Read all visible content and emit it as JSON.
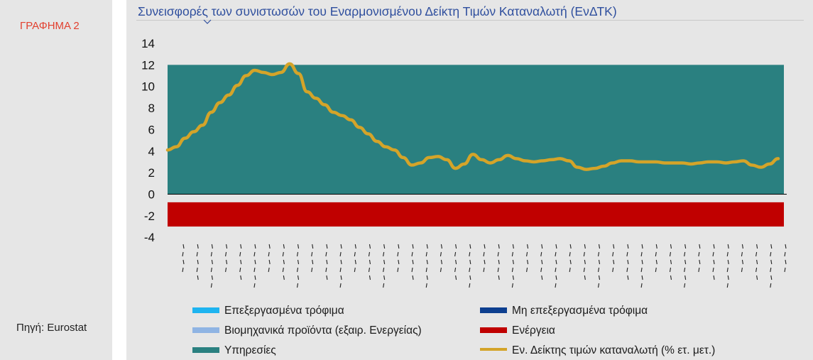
{
  "sidebar": {
    "chart_label": "ΓΡΑΦΗΜΑ 2",
    "source": "Πηγή: Eurostat"
  },
  "chart_data": {
    "type": "area",
    "title": "Συνεισφορές των συνιστωσών του Εναρμονισμένου Δείκτη Τιμών Καταναλωτή (ΕνΔΤΚ)",
    "xlabel": "",
    "ylabel": "",
    "ylim": [
      -4,
      14
    ],
    "yticks": [
      14,
      12,
      10,
      8,
      6,
      4,
      2,
      0,
      -2,
      -4
    ],
    "colors": {
      "processed_food": "#1eb4f0",
      "unprocessed_food": "#0d3f8f",
      "industrial_goods": "#8fb4e3",
      "energy": "#c00000",
      "services": "#2a8080",
      "hicp": "#d4a429",
      "zero_line": "#000000"
    },
    "stacked_series": [
      {
        "name": "Υπηρεσίες",
        "color_key": "services",
        "values_range": [
          0,
          12
        ]
      },
      {
        "name": "Ενέργεια",
        "color_key": "energy",
        "values_range": [
          -3,
          -0.75
        ]
      }
    ],
    "line_series": {
      "name": "Εν. Δείκτης τιμών καταναλωτή (% ετ. μετ.)",
      "values": [
        4.1,
        4.4,
        5.2,
        5.8,
        6.4,
        7.6,
        8.5,
        9.2,
        10.1,
        11.0,
        11.5,
        11.3,
        11.1,
        11.3,
        12.1,
        11.2,
        9.5,
        8.9,
        8.3,
        7.6,
        7.3,
        6.9,
        6.2,
        5.6,
        4.9,
        4.4,
        4.1,
        3.4,
        2.7,
        2.9,
        3.4,
        3.5,
        3.2,
        2.4,
        2.8,
        3.7,
        3.2,
        2.9,
        3.2,
        3.6,
        3.3,
        3.1,
        3.0,
        3.1,
        3.2,
        3.3,
        3.1,
        2.5,
        2.3,
        2.4,
        2.6,
        2.9,
        3.1,
        3.1,
        3.0,
        3.0,
        3.0,
        2.9,
        2.9,
        2.9,
        2.8,
        2.9,
        3.0,
        3.0,
        2.9,
        3.0,
        3.1,
        2.7,
        2.5,
        2.8,
        3.3
      ]
    },
    "legend": [
      {
        "label": "Επεξεργασμένα τρόφιμα",
        "color_key": "processed_food",
        "position": "bottom-left"
      },
      {
        "label": "Μη επεξεργασμένα τρόφιμα",
        "color_key": "unprocessed_food",
        "position": "bottom-right"
      },
      {
        "label": "Βιομηχανικά προϊόντα (εξαιρ. Ενεργείας)",
        "color_key": "industrial_goods",
        "position": "bottom-left"
      },
      {
        "label": "Ενέργεια",
        "color_key": "energy",
        "position": "bottom-right"
      },
      {
        "label": "Υπηρεσίες",
        "color_key": "services",
        "position": "bottom-left"
      },
      {
        "label": "Εν. Δείκτης τιμών καταναλωτή (% ετ. μετ.)",
        "color_key": "hicp",
        "position": "bottom-right"
      }
    ],
    "grid": false,
    "x_tick_count": 43,
    "x_tick_labels_legible": false
  }
}
